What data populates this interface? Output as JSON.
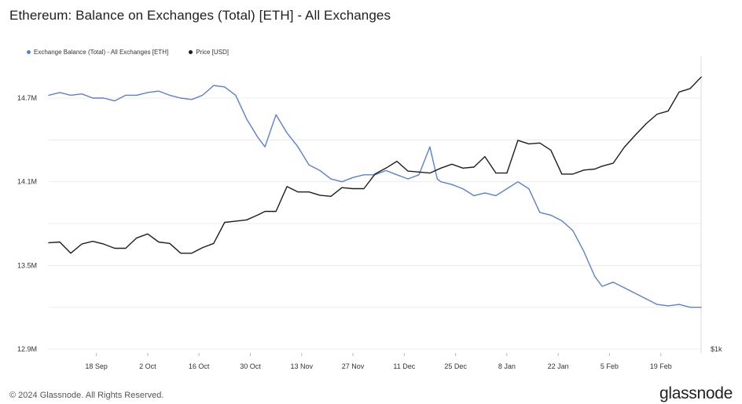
{
  "header": {
    "title": "Ethereum: Balance on Exchanges (Total) [ETH] - All Exchanges"
  },
  "footer": {
    "copyright": "© 2024 Glassnode. All Rights Reserved.",
    "brand": "glassnode"
  },
  "chart_data": {
    "type": "line",
    "title": "Ethereum: Balance on Exchanges (Total) [ETH] - All Exchanges",
    "legend_position": "top-left",
    "grid": "horizontal",
    "x_ticks": [
      "18 Sep",
      "2 Oct",
      "16 Oct",
      "30 Oct",
      "13 Nov",
      "27 Nov",
      "11 Dec",
      "25 Dec",
      "8 Jan",
      "22 Jan",
      "5 Feb",
      "19 Feb"
    ],
    "y_left": {
      "ticks": [
        "14.7M",
        "14.1M",
        "13.5M",
        "12.9M"
      ],
      "range": [
        12.9,
        14.7
      ],
      "unit": "M ETH"
    },
    "y_right": {
      "ticks": [
        "$1k"
      ]
    },
    "x_range": [
      "2023-09-05",
      "2024-03-01"
    ],
    "series": [
      {
        "name": "Exchange Balance (Total) - All Exchanges [ETH]",
        "color": "#5b7fd4",
        "axis": "left",
        "x": [
          "2023-09-05",
          "2023-09-08",
          "2023-09-11",
          "2023-09-14",
          "2023-09-17",
          "2023-09-20",
          "2023-09-23",
          "2023-09-26",
          "2023-09-29",
          "2023-10-02",
          "2023-10-05",
          "2023-10-08",
          "2023-10-11",
          "2023-10-14",
          "2023-10-17",
          "2023-10-20",
          "2023-10-23",
          "2023-10-26",
          "2023-10-29",
          "2023-11-01",
          "2023-11-03",
          "2023-11-06",
          "2023-11-09",
          "2023-11-12",
          "2023-11-15",
          "2023-11-18",
          "2023-11-21",
          "2023-11-24",
          "2023-11-27",
          "2023-11-30",
          "2023-12-03",
          "2023-12-06",
          "2023-12-09",
          "2023-12-12",
          "2023-12-15",
          "2023-12-18",
          "2023-12-20",
          "2023-12-21",
          "2023-12-24",
          "2023-12-27",
          "2023-12-30",
          "2024-01-02",
          "2024-01-05",
          "2024-01-08",
          "2024-01-11",
          "2024-01-14",
          "2024-01-17",
          "2024-01-20",
          "2024-01-23",
          "2024-01-26",
          "2024-01-29",
          "2024-02-01",
          "2024-02-03",
          "2024-02-06",
          "2024-02-09",
          "2024-02-12",
          "2024-02-15",
          "2024-02-18",
          "2024-02-21",
          "2024-02-24",
          "2024-02-27",
          "2024-03-01"
        ],
        "values": [
          14.72,
          14.74,
          14.72,
          14.73,
          14.7,
          14.7,
          14.68,
          14.72,
          14.72,
          14.74,
          14.75,
          14.72,
          14.7,
          14.69,
          14.72,
          14.79,
          14.78,
          14.72,
          14.55,
          14.42,
          14.35,
          14.58,
          14.45,
          14.35,
          14.22,
          14.18,
          14.12,
          14.1,
          14.13,
          14.15,
          14.15,
          14.18,
          14.15,
          14.12,
          14.15,
          14.35,
          14.12,
          14.1,
          14.08,
          14.05,
          14.0,
          14.02,
          14.0,
          14.05,
          14.1,
          14.05,
          13.88,
          13.86,
          13.82,
          13.75,
          13.6,
          13.42,
          13.35,
          13.38,
          13.34,
          13.3,
          13.26,
          13.22,
          13.21,
          13.22,
          13.2,
          13.2
        ]
      },
      {
        "name": "Price [USD]",
        "color": "#1e1e1e",
        "axis": "right",
        "x": [
          "2023-09-05",
          "2023-09-08",
          "2023-09-11",
          "2023-09-14",
          "2023-09-17",
          "2023-09-20",
          "2023-09-23",
          "2023-09-26",
          "2023-09-29",
          "2023-10-02",
          "2023-10-05",
          "2023-10-08",
          "2023-10-11",
          "2023-10-14",
          "2023-10-17",
          "2023-10-20",
          "2023-10-23",
          "2023-10-26",
          "2023-10-29",
          "2023-11-01",
          "2023-11-03",
          "2023-11-06",
          "2023-11-09",
          "2023-11-12",
          "2023-11-15",
          "2023-11-18",
          "2023-11-21",
          "2023-11-24",
          "2023-11-27",
          "2023-11-30",
          "2023-12-03",
          "2023-12-06",
          "2023-12-09",
          "2023-12-12",
          "2023-12-15",
          "2023-12-18",
          "2023-12-21",
          "2023-12-24",
          "2023-12-27",
          "2023-12-30",
          "2024-01-02",
          "2024-01-05",
          "2024-01-08",
          "2024-01-11",
          "2024-01-14",
          "2024-01-17",
          "2024-01-20",
          "2024-01-23",
          "2024-01-26",
          "2024-01-29",
          "2024-02-01",
          "2024-02-03",
          "2024-02-06",
          "2024-02-09",
          "2024-02-12",
          "2024-02-15",
          "2024-02-18",
          "2024-02-21",
          "2024-02-24",
          "2024-02-27",
          "2024-03-01"
        ],
        "values": [
          1635,
          1640,
          1560,
          1625,
          1645,
          1625,
          1595,
          1595,
          1670,
          1700,
          1640,
          1630,
          1560,
          1560,
          1600,
          1630,
          1790,
          1800,
          1810,
          1850,
          1880,
          1880,
          2100,
          2050,
          2050,
          2020,
          2010,
          2090,
          2080,
          2080,
          2220,
          2280,
          2350,
          2250,
          2240,
          2230,
          2280,
          2320,
          2280,
          2290,
          2400,
          2230,
          2230,
          2580,
          2540,
          2550,
          2470,
          2220,
          2220,
          2260,
          2270,
          2300,
          2330,
          2500,
          2640,
          2780,
          2900,
          2940,
          3200,
          3250,
          3420
        ]
      }
    ]
  }
}
